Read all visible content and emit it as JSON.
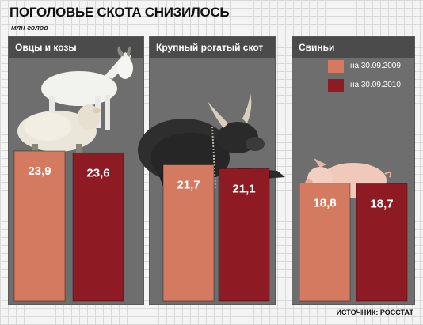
{
  "title": "ПОГОЛОВЬЕ СКОТА СНИЗИЛОСЬ",
  "unit": "млн голов",
  "source": "ИСТОЧНИК: РОССТАТ",
  "colors": {
    "panel": "#6e6e6e",
    "panel_header": "#4b4b4b",
    "series_2009": "#d47a60",
    "series_2010": "#8e1a24"
  },
  "chart_data": {
    "type": "bar",
    "legend_position": "top-right",
    "series": [
      {
        "name": "на 30.09.2009",
        "color": "#d47a60"
      },
      {
        "name": "на 30.09.2010",
        "color": "#8e1a24"
      }
    ],
    "groups": [
      {
        "name": "Овцы и козы",
        "values": [
          23.9,
          23.6
        ],
        "labels": [
          "23,9",
          "23,6"
        ],
        "icon": "sheep-and-goat-image"
      },
      {
        "name": "Крупный рогатый скот",
        "values": [
          21.7,
          21.1
        ],
        "labels": [
          "21,7",
          "21,1"
        ],
        "icon": "bull-image"
      },
      {
        "name": "Свиньи",
        "values": [
          18.8,
          18.7
        ],
        "labels": [
          "18,8",
          "18,7"
        ],
        "icon": "pig-image"
      }
    ]
  }
}
